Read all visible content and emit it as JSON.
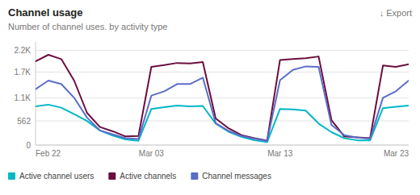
{
  "chart_data": {
    "type": "line",
    "title": "Channel usage",
    "subtitle": "Number of channel uses. by activity type",
    "annotations": [
      "↓ Export"
    ],
    "categories": [
      "Feb 22",
      null,
      null,
      null,
      null,
      null,
      null,
      null,
      null,
      "Mar 03",
      null,
      null,
      null,
      null,
      null,
      null,
      null,
      null,
      null,
      "Mar 13",
      null,
      null,
      null,
      null,
      null,
      null,
      null,
      null,
      null,
      "Mar 23"
    ],
    "series": [
      {
        "name": "Active channel users",
        "color": "#00B8C4",
        "values": [
          900,
          940,
          870,
          720,
          560,
          340,
          220,
          130,
          100,
          840,
          880,
          920,
          900,
          910,
          500,
          310,
          190,
          110,
          70,
          840,
          830,
          800,
          500,
          300,
          160,
          110,
          110,
          860,
          890,
          920
        ]
      },
      {
        "name": "Active channels",
        "color": "#6B0E3E",
        "values": [
          1950,
          2100,
          2000,
          1500,
          750,
          420,
          320,
          200,
          210,
          1820,
          1860,
          1910,
          1900,
          1930,
          620,
          390,
          230,
          160,
          105,
          1980,
          2000,
          2020,
          2060,
          580,
          200,
          180,
          160,
          1850,
          1820,
          1880
        ]
      },
      {
        "name": "Channel messages",
        "color": "#5B6DC8",
        "values": [
          1300,
          1500,
          1420,
          1100,
          640,
          340,
          250,
          160,
          140,
          1150,
          1250,
          1420,
          1420,
          1570,
          510,
          330,
          210,
          145,
          100,
          1510,
          1750,
          1830,
          1820,
          470,
          230,
          175,
          145,
          1100,
          1250,
          1500
        ]
      }
    ],
    "ylim": [
      0,
      2400
    ],
    "yticks": [
      0,
      562,
      {
        "value": 1100,
        "label": "1.1K"
      },
      {
        "value": 1700,
        "label": "1.7K"
      },
      {
        "value": 2200,
        "label": "2.2K"
      }
    ],
    "grid": true,
    "legend": "bottom"
  }
}
